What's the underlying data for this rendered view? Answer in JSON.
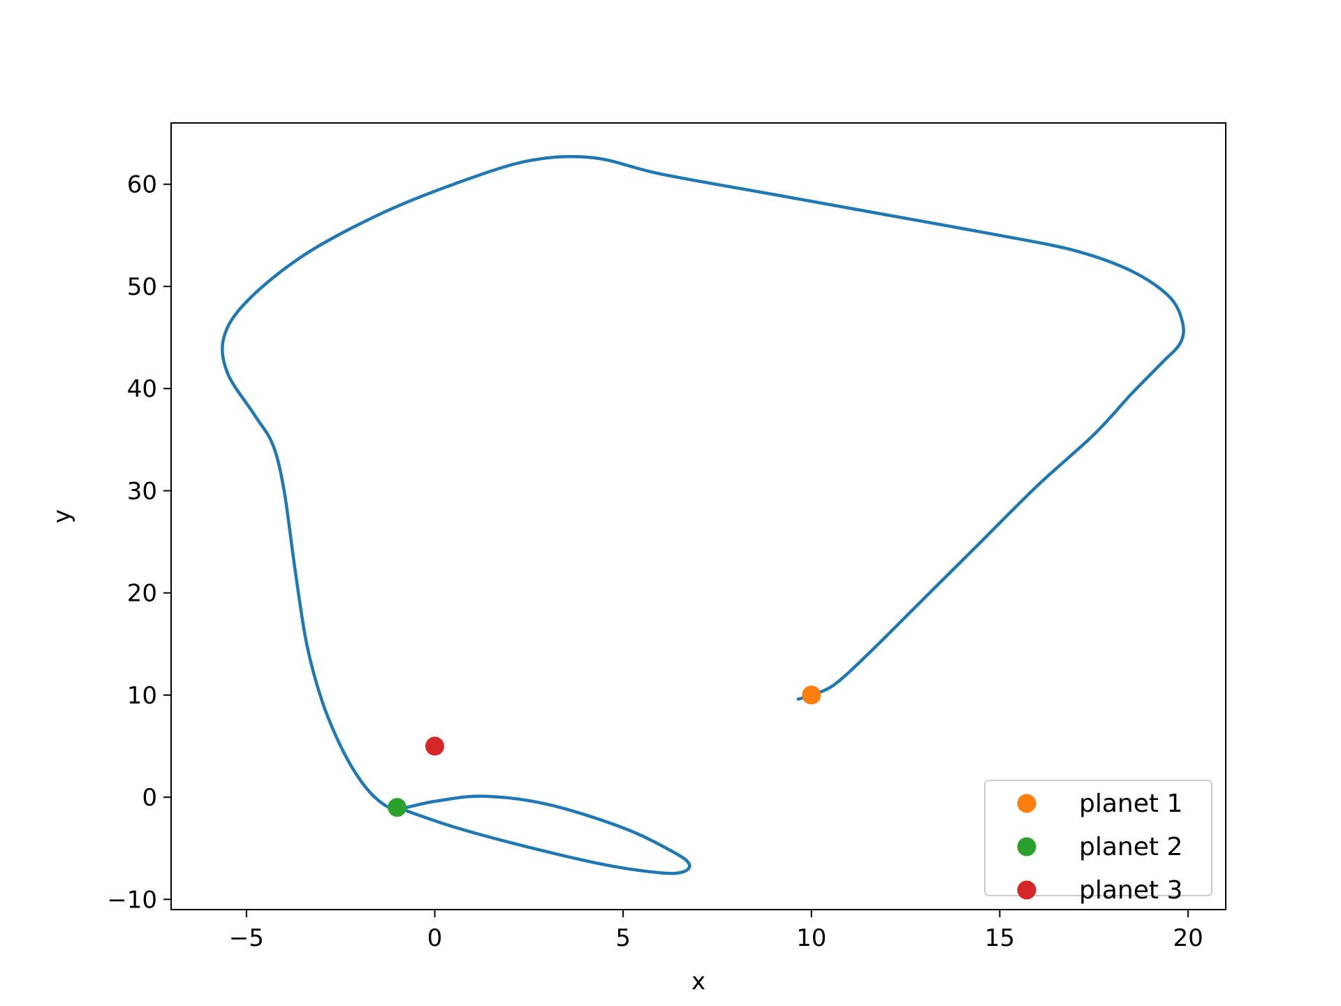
{
  "chart_data": {
    "type": "line",
    "title": "",
    "xlabel": "x",
    "ylabel": "y",
    "xlim": [
      -7,
      21
    ],
    "ylim": [
      -11,
      66
    ],
    "xticks": [
      -5,
      0,
      5,
      10,
      15,
      20
    ],
    "xtick_labels": [
      "−5",
      "0",
      "5",
      "10",
      "15",
      "20"
    ],
    "yticks": [
      -10,
      0,
      10,
      20,
      30,
      40,
      50,
      60
    ],
    "ytick_labels": [
      "−10",
      "0",
      "10",
      "20",
      "30",
      "40",
      "50",
      "60"
    ],
    "grid": false,
    "legend_position": "lower-right",
    "series": [
      {
        "kind": "line",
        "color": "#1f77b4",
        "x": [
          9.65,
          10.0,
          10.6,
          11.5,
          13.0,
          14.5,
          16.0,
          17.5,
          18.5,
          19.3,
          19.8,
          19.85,
          19.5,
          18.5,
          17.0,
          15.0,
          12.0,
          9.0,
          6.0,
          4.2,
          2.5,
          0.5,
          -1.5,
          -3.5,
          -5.0,
          -5.6,
          -5.5,
          -4.8,
          -4.3,
          -4.0,
          -3.7,
          -3.4,
          -3.0,
          -2.5,
          -2.0,
          -1.5,
          -1.0,
          0.0,
          1.3,
          3.0,
          5.0,
          6.3,
          6.75,
          6.6,
          6.0,
          4.5,
          2.5,
          0.5,
          -1.0
        ],
        "y": [
          9.6,
          10.0,
          11.0,
          14.0,
          19.5,
          25.0,
          30.5,
          35.5,
          39.5,
          42.5,
          44.5,
          46.5,
          49.0,
          51.5,
          53.5,
          55.0,
          57.0,
          59.0,
          61.0,
          62.6,
          62.3,
          60.0,
          57.0,
          53.0,
          48.5,
          45.0,
          41.5,
          37.5,
          34.5,
          30.0,
          22.0,
          15.0,
          9.5,
          5.0,
          1.8,
          -0.3,
          -1.1,
          -0.4,
          0.1,
          -0.7,
          -3.0,
          -5.3,
          -6.5,
          -7.3,
          -7.4,
          -6.6,
          -4.9,
          -2.9,
          -1.0
        ]
      },
      {
        "kind": "point",
        "name": "planet 1",
        "color": "#ff7f0e",
        "x": [
          10
        ],
        "y": [
          10
        ]
      },
      {
        "kind": "point",
        "name": "planet 2",
        "color": "#2ca02c",
        "x": [
          -1
        ],
        "y": [
          -1
        ]
      },
      {
        "kind": "point",
        "name": "planet 3",
        "color": "#d62728",
        "x": [
          0
        ],
        "y": [
          5
        ]
      }
    ]
  }
}
